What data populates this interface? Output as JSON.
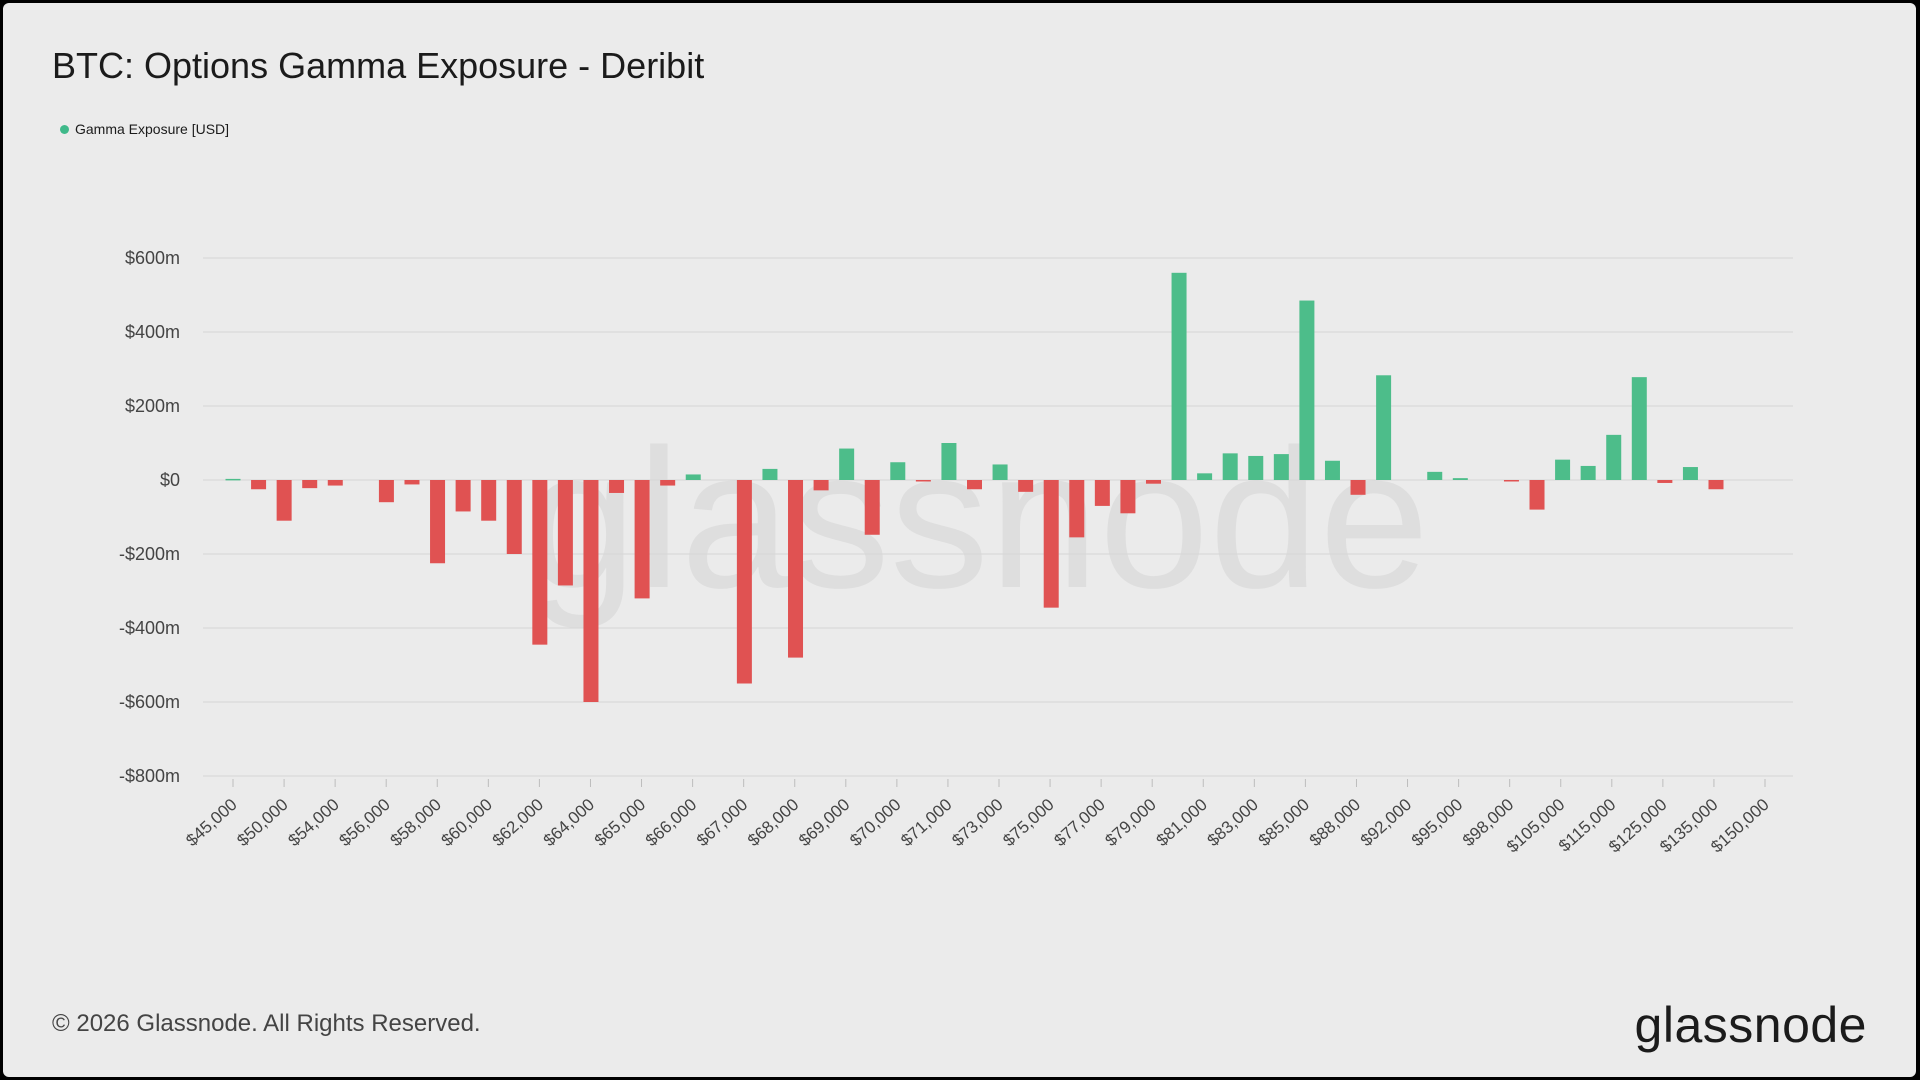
{
  "title": "BTC: Options Gamma Exposure - Deribit",
  "footer": {
    "copyright": "© 2026 Glassnode. All Rights Reserved.",
    "logo_text": "glassnode",
    "watermark_text": "glassnode"
  },
  "colors": {
    "positive": "#4dbd8a",
    "negative": "#e05252",
    "legend": "#3fb98a",
    "grid": "#d6d6d6",
    "axis_text": "#444444"
  },
  "chart_data": {
    "type": "bar",
    "series_name": "Gamma Exposure [USD]",
    "value_unit": "USD millions",
    "ylim": [
      -800,
      600
    ],
    "yticks": [
      600,
      400,
      200,
      0,
      -200,
      -400,
      -600,
      -800
    ],
    "ytick_labels": [
      "$600m",
      "$400m",
      "$200m",
      "$0",
      "-$200m",
      "-$400m",
      "-$600m",
      "-$800m"
    ],
    "grid": true,
    "legend_position": "top-left",
    "xtick_labels": [
      "$45,000",
      "$50,000",
      "$54,000",
      "$56,000",
      "$58,000",
      "$60,000",
      "$62,000",
      "$64,000",
      "$65,000",
      "$66,000",
      "$67,000",
      "$68,000",
      "$69,000",
      "$70,000",
      "$71,000",
      "$73,000",
      "$75,000",
      "$77,000",
      "$79,000",
      "$81,000",
      "$83,000",
      "$85,000",
      "$88,000",
      "$92,000",
      "$95,000",
      "$98,000",
      "$105,000",
      "$115,000",
      "$125,000",
      "$135,000",
      "$150,000"
    ],
    "values": [
      3,
      -25,
      -110,
      -22,
      -15,
      0,
      -60,
      -12,
      -225,
      -85,
      -110,
      -200,
      -445,
      -285,
      -600,
      -35,
      -320,
      -15,
      15,
      0,
      -550,
      30,
      -480,
      -28,
      85,
      -148,
      48,
      -3,
      100,
      -25,
      42,
      -32,
      -345,
      -155,
      -70,
      -90,
      -10,
      560,
      18,
      72,
      65,
      70,
      485,
      52,
      -40,
      283,
      0,
      22,
      5,
      0,
      -3,
      -80,
      55,
      38,
      122,
      278,
      -8,
      35,
      -25
    ]
  }
}
